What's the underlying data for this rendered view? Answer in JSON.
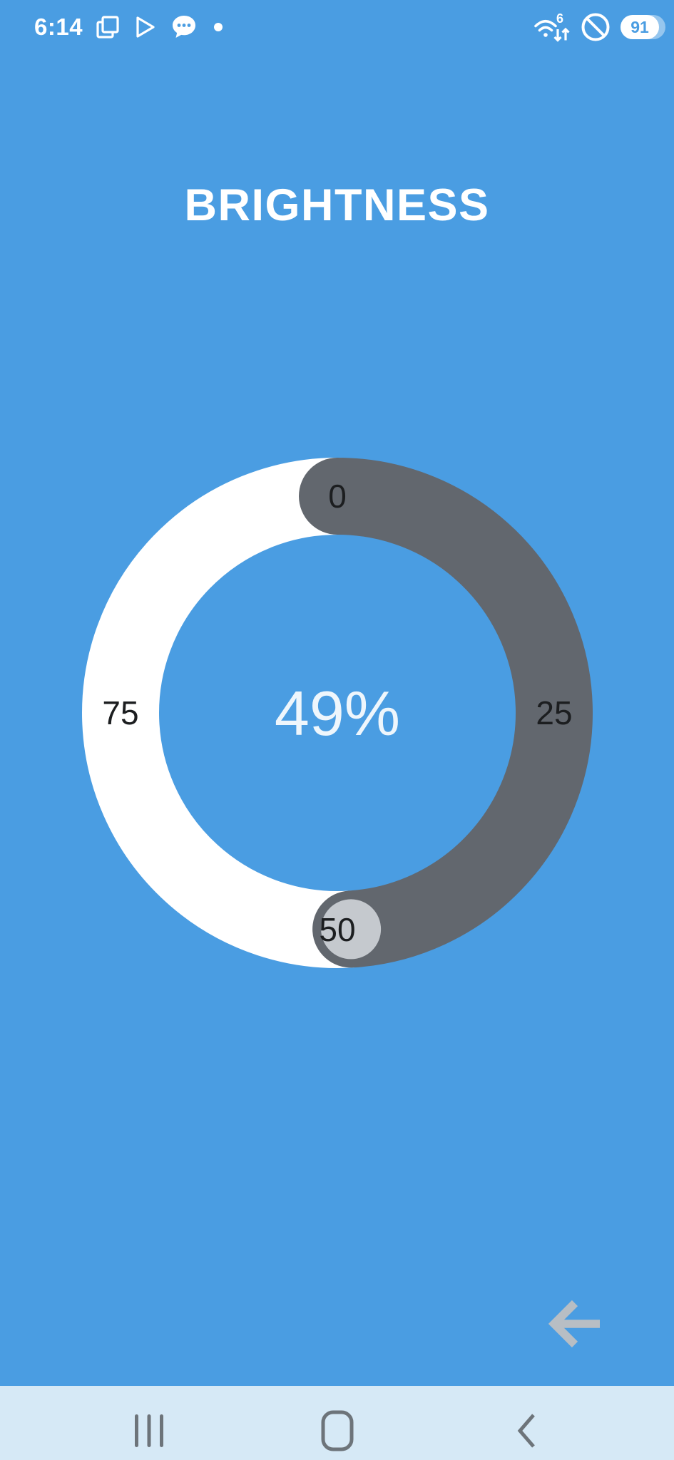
{
  "colors": {
    "background": "#4a9de2",
    "nav_background": "#d6e9f6",
    "nav_icon": "#6d747a",
    "back_arrow": "#b8bec4",
    "battery_text": "#4a9de2"
  },
  "status_bar": {
    "time": "6:14",
    "notification_icons": [
      "multi-window",
      "play-store",
      "messages",
      "notification-dot"
    ],
    "wifi_label": "6",
    "battery_level": "91"
  },
  "header": {
    "title": "BRIGHTNESS"
  },
  "dial": {
    "value": 49,
    "min": 0,
    "max": 100,
    "display_value": "49%",
    "tick_labels": [
      0,
      25,
      50,
      75
    ],
    "colors": {
      "value_arc": "#62676e",
      "remainder_arc": "#ffffff",
      "knob": "#c5c9ce",
      "display_text": "#eef6fc",
      "tick_text": "#1c1e20"
    }
  },
  "back_button": {
    "icon": "arrow-left"
  },
  "nav_bar": {
    "items": [
      "recents",
      "home",
      "back"
    ]
  }
}
